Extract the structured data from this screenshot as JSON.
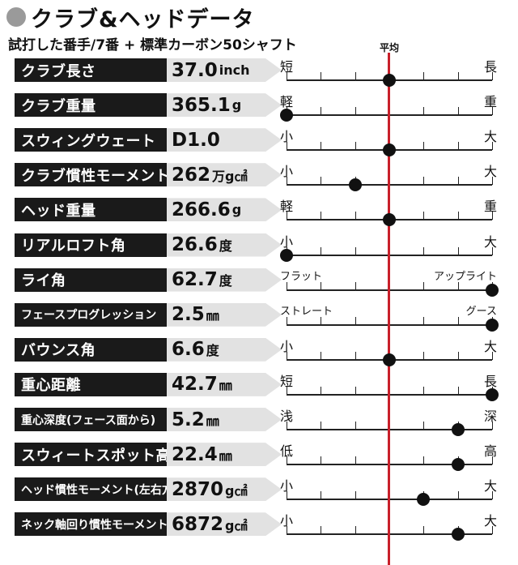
{
  "title": "クラブ&ヘッドデータ",
  "subtitle": "試打した番手/7番 + 標準カーボン50シャフト",
  "average_label": "平均",
  "rows": [
    {
      "label": "クラブ長さ",
      "value": "37.0",
      "unit": "inch",
      "left": "短",
      "right": "長",
      "position": 0.5
    },
    {
      "label": "クラブ重量",
      "value": "365.1",
      "unit": "g",
      "left": "軽",
      "right": "重",
      "position": 0.0
    },
    {
      "label": "スウィングウェート",
      "value": "D1.0",
      "unit": "",
      "left": "小",
      "right": "大",
      "position": 0.5
    },
    {
      "label": "クラブ慣性モーメント",
      "value": "262",
      "unit": "万g㎠",
      "left": "小",
      "right": "大",
      "position": 0.333
    },
    {
      "label": "ヘッド重量",
      "value": "266.6",
      "unit": "g",
      "left": "軽",
      "right": "重",
      "position": 0.5
    },
    {
      "label": "リアルロフト角",
      "value": "26.6",
      "unit": "度",
      "left": "小",
      "right": "大",
      "position": 0.0
    },
    {
      "label": "ライ角",
      "value": "62.7",
      "unit": "度",
      "left": "フラット",
      "right": "アップライト",
      "position": 1.0
    },
    {
      "label": "フェースプログレッション",
      "value": "2.5",
      "unit": "㎜",
      "left": "ストレート",
      "right": "グース",
      "position": 1.0
    },
    {
      "label": "バウンス角",
      "value": "6.6",
      "unit": "度",
      "left": "小",
      "right": "大",
      "position": 0.5
    },
    {
      "label": "重心距離",
      "value": "42.7",
      "unit": "㎜",
      "left": "短",
      "right": "長",
      "position": 1.0
    },
    {
      "label": "重心深度(フェース面から)",
      "value": "5.2",
      "unit": "㎜",
      "left": "浅",
      "right": "深",
      "position": 0.833
    },
    {
      "label": "スウィートスポット高さ",
      "value": "22.4",
      "unit": "㎜",
      "left": "低",
      "right": "高",
      "position": 0.833
    },
    {
      "label": "ヘッド慣性モーメント(左右方向)",
      "value": "2870",
      "unit": "g㎠",
      "left": "小",
      "right": "大",
      "position": 0.667
    },
    {
      "label": "ネック軸回り慣性モーメント",
      "value": "6872",
      "unit": "g㎠",
      "left": "小",
      "right": "大",
      "position": 0.833
    }
  ],
  "colors": {
    "average_line": "#c8202a",
    "label_bg": "#1a1a1a",
    "value_bg": "#e2e2e2"
  }
}
